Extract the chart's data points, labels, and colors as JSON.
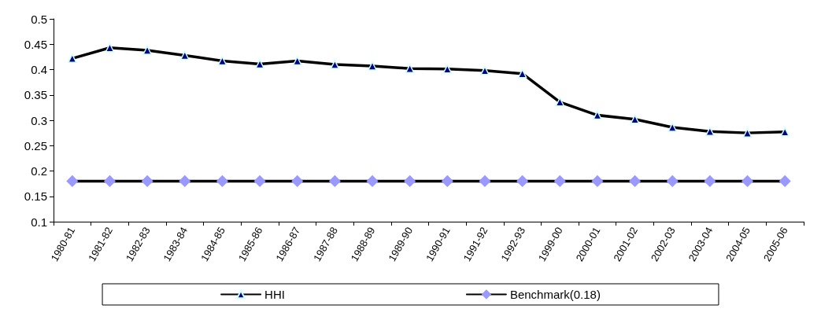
{
  "chart_data": {
    "type": "line",
    "categories": [
      "1980-81",
      "1981-82",
      "1982-83",
      "1983-84",
      "1984-85",
      "1985-86",
      "1986-87",
      "1987-88",
      "1988-89",
      "1989-90",
      "1990-91",
      "1991-92",
      "1992-93",
      "1999-00",
      "2000-01",
      "2001-02",
      "2002-03",
      "2003-04",
      "2004-05",
      "2005-06"
    ],
    "series": [
      {
        "name": "HHI",
        "color": "#000000",
        "marker": "triangle",
        "values": [
          0.422,
          0.443,
          0.438,
          0.428,
          0.417,
          0.411,
          0.417,
          0.41,
          0.407,
          0.402,
          0.401,
          0.398,
          0.392,
          0.336,
          0.31,
          0.302,
          0.286,
          0.278,
          0.275,
          0.277
        ]
      },
      {
        "name": "Benchmark(0.18)",
        "color": "#000000",
        "marker": "diamond",
        "values": [
          0.18,
          0.18,
          0.18,
          0.18,
          0.18,
          0.18,
          0.18,
          0.18,
          0.18,
          0.18,
          0.18,
          0.18,
          0.18,
          0.18,
          0.18,
          0.18,
          0.18,
          0.18,
          0.18,
          0.18
        ]
      }
    ],
    "ylim": [
      0.1,
      0.5
    ],
    "yticks": [
      0.1,
      0.15,
      0.2,
      0.25,
      0.3,
      0.35,
      0.4,
      0.45,
      0.5
    ],
    "grid": false,
    "legend": "bottom",
    "line_style": "solid"
  }
}
